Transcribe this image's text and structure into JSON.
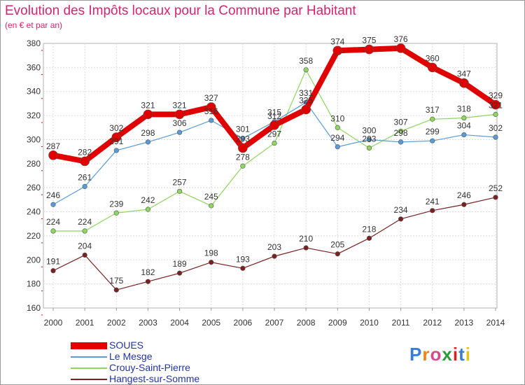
{
  "chart_data": {
    "type": "line",
    "title": "Evolution des Impôts locaux pour la Commune par Habitant",
    "subtitle": "(en € et par an)",
    "xlabel": "",
    "ylabel": "",
    "categories": [
      "2000",
      "2001",
      "2002",
      "2003",
      "2004",
      "2005",
      "2006",
      "2007",
      "2008",
      "2009",
      "2010",
      "2011",
      "2012",
      "2013",
      "2014"
    ],
    "ylim": [
      160,
      380
    ],
    "yticks": [
      160,
      180,
      200,
      220,
      240,
      260,
      280,
      300,
      320,
      340,
      360,
      380
    ],
    "grid": true,
    "legend_position": "bottom-left",
    "series": [
      {
        "name": "SOUES",
        "color": "#e00000",
        "values": [
          287,
          282,
          302,
          321,
          321,
          327,
          293,
          312,
          325,
          374,
          375,
          376,
          360,
          347,
          329
        ]
      },
      {
        "name": "Le Mesge",
        "color": "#5b9bd5",
        "values": [
          246,
          261,
          291,
          298,
          306,
          316,
          301,
          315,
          331,
          294,
          300,
          298,
          299,
          304,
          302
        ]
      },
      {
        "name": "Crouy-Saint-Pierre",
        "color": "#8ed65e",
        "values": [
          224,
          224,
          239,
          242,
          257,
          245,
          278,
          297,
          358,
          310,
          293,
          307,
          317,
          318,
          321
        ]
      },
      {
        "name": "Hangest-sur-Somme",
        "color": "#7a2020",
        "values": [
          191,
          204,
          175,
          182,
          189,
          198,
          193,
          203,
          210,
          205,
          218,
          234,
          241,
          246,
          252
        ]
      }
    ]
  },
  "branding": {
    "logo_text": "Proxiti"
  }
}
